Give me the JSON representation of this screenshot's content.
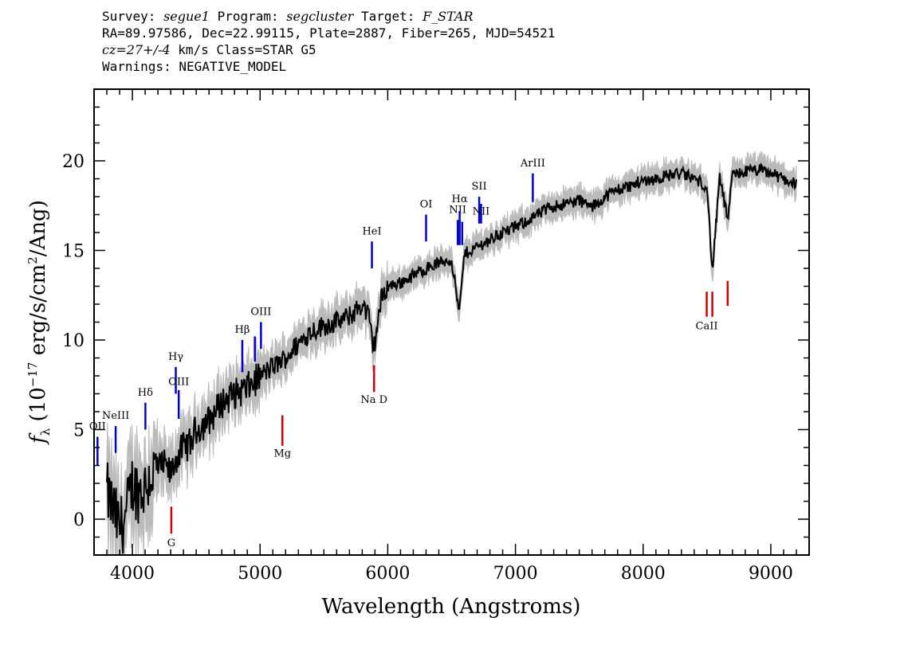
{
  "header": {
    "line1": {
      "survey_label": "Survey:",
      "survey": "segue1",
      "program_label": "Program:",
      "program": "segcluster",
      "target_label": "Target:",
      "target": "F_STAR"
    },
    "line2": "RA=89.97586, Dec=22.99115, Plate=2887, Fiber=265, MJD=54521",
    "line3": {
      "cz": "cz=27+/-4",
      "rest": "km/s Class=STAR G5"
    },
    "line4": "Warnings: NEGATIVE_MODEL"
  },
  "chart_data": {
    "type": "line",
    "xlabel": "Wavelength (Angstroms)",
    "ylabel": "fλ (10⁻¹⁷ erg/s/cm²/Ang)",
    "xlim": [
      3700,
      9300
    ],
    "ylim": [
      -2,
      24
    ],
    "x_ticks": [
      4000,
      5000,
      6000,
      7000,
      8000,
      9000
    ],
    "y_ticks": [
      0,
      5,
      10,
      15,
      20
    ],
    "series": [
      {
        "role": "flux",
        "color": "#000000",
        "x": [
          3800,
          3850,
          3900,
          3950,
          4000,
          4050,
          4100,
          4150,
          4200,
          4250,
          4300,
          4350,
          4400,
          4450,
          4500,
          4600,
          4700,
          4800,
          4900,
          5000,
          5100,
          5200,
          5300,
          5400,
          5500,
          5600,
          5700,
          5800,
          5850,
          5890,
          5950,
          6000,
          6100,
          6200,
          6300,
          6400,
          6500,
          6560,
          6600,
          6700,
          6800,
          6900,
          7000,
          7100,
          7200,
          7300,
          7400,
          7500,
          7600,
          7700,
          7800,
          7900,
          8000,
          8100,
          8200,
          8300,
          8400,
          8500,
          8542,
          8600,
          8662,
          8700,
          8800,
          8900,
          9000,
          9100,
          9200
        ],
        "y": [
          1.5,
          0.5,
          -0.5,
          0.2,
          2.0,
          1.5,
          1.8,
          2.5,
          2.8,
          3.0,
          2.5,
          3.5,
          4.0,
          4.2,
          5.0,
          5.5,
          6.5,
          7.0,
          7.3,
          8.0,
          8.5,
          9.0,
          9.8,
          10.5,
          10.8,
          11.0,
          11.3,
          12.0,
          11.3,
          9.5,
          12.3,
          13.0,
          13.2,
          13.6,
          14.0,
          14.3,
          14.5,
          11.5,
          14.8,
          15.2,
          15.6,
          16.0,
          16.3,
          16.7,
          17.1,
          17.5,
          17.6,
          17.8,
          17.4,
          18.0,
          18.4,
          18.6,
          18.9,
          19.0,
          19.2,
          19.3,
          19.0,
          18.6,
          13.8,
          19.1,
          16.7,
          19.2,
          19.4,
          19.5,
          19.3,
          19.0,
          18.7
        ]
      },
      {
        "role": "error_band",
        "color": "#bbbbbb"
      }
    ],
    "lines": [
      {
        "label": "OII",
        "x": 3727,
        "y1": 3.0,
        "y2": 4.6,
        "kind": "emission",
        "color": "#0000cc",
        "label_y": 5.0
      },
      {
        "label": "NeIII",
        "x": 3869,
        "y1": 3.7,
        "y2": 5.2,
        "kind": "emission",
        "color": "#0000cc",
        "label_y": 5.6
      },
      {
        "label": "Hδ",
        "x": 4102,
        "y1": 5.0,
        "y2": 6.5,
        "kind": "emission",
        "color": "#0000cc",
        "label_y": 6.9
      },
      {
        "label": "Hγ",
        "x": 4340,
        "y1": 7.0,
        "y2": 8.5,
        "kind": "emission",
        "color": "#0000cc",
        "label_y": 8.9
      },
      {
        "label": "OIII",
        "x": 4363,
        "y1": 5.6,
        "y2": 7.2,
        "kind": "emission",
        "color": "#0000cc",
        "label_y": 7.5
      },
      {
        "label": "Hβ",
        "x": 4861,
        "y1": 8.2,
        "y2": 10.0,
        "kind": "emission",
        "color": "#0000cc",
        "label_y": 10.4
      },
      {
        "label": "OIII",
        "x": 4959,
        "y1": 8.8,
        "y2": 10.2,
        "kind": "emission",
        "color": "#0000cc",
        "label_y": ""
      },
      {
        "label": "OIII",
        "x": 5007,
        "y1": 9.5,
        "y2": 11.0,
        "kind": "emission",
        "color": "#0000cc",
        "label_y": 11.4
      },
      {
        "label": "HeI",
        "x": 5876,
        "y1": 14.0,
        "y2": 15.5,
        "kind": "emission",
        "color": "#0000cc",
        "label_y": 15.9
      },
      {
        "label": "OI",
        "x": 6300,
        "y1": 15.5,
        "y2": 17.0,
        "kind": "emission",
        "color": "#0000cc",
        "label_y": 17.4
      },
      {
        "label": "NII",
        "x": 6548,
        "y1": 15.3,
        "y2": 16.7,
        "kind": "emission",
        "color": "#0000cc",
        "label_y": 17.1
      },
      {
        "label": "Hα",
        "x": 6563,
        "y1": 15.3,
        "y2": 17.2,
        "kind": "emission",
        "color": "#0000cc",
        "label_y": 17.7
      },
      {
        "label": "NII",
        "x": 6583,
        "y1": 15.3,
        "y2": 16.6,
        "kind": "emission",
        "color": "#0000cc",
        "label_y": ""
      },
      {
        "label": "SII",
        "x": 6716,
        "y1": 16.5,
        "y2": 18.0,
        "kind": "emission",
        "color": "#0000cc",
        "label_y": 18.4
      },
      {
        "label": "NII",
        "x": 6731,
        "y1": 16.5,
        "y2": 17.6,
        "kind": "emission",
        "color": "#0000cc",
        "label_y": 17.0
      },
      {
        "label": "ArIII",
        "x": 7136,
        "y1": 17.7,
        "y2": 19.3,
        "kind": "emission",
        "color": "#0000cc",
        "label_y": 19.7
      },
      {
        "label": "G",
        "x": 4305,
        "y1": -0.8,
        "y2": 0.7,
        "kind": "absorption",
        "color": "#cc0000",
        "label_y": -1.5
      },
      {
        "label": "Mg",
        "x": 5175,
        "y1": 4.1,
        "y2": 5.8,
        "kind": "absorption",
        "color": "#cc0000",
        "label_y": 3.5
      },
      {
        "label": "Na D",
        "x": 5893,
        "y1": 7.1,
        "y2": 8.6,
        "kind": "absorption",
        "color": "#cc0000",
        "label_y": 6.5
      },
      {
        "label": "CaII",
        "x": 8498,
        "y1": 11.3,
        "y2": 12.7,
        "kind": "absorption",
        "color": "#cc0000",
        "label_y": 10.6
      },
      {
        "label": "",
        "x": 8542,
        "y1": 11.3,
        "y2": 12.7,
        "kind": "absorption",
        "color": "#cc0000",
        "label_y": ""
      },
      {
        "label": "",
        "x": 8662,
        "y1": 11.9,
        "y2": 13.3,
        "kind": "absorption",
        "color": "#cc0000",
        "label_y": ""
      }
    ]
  }
}
